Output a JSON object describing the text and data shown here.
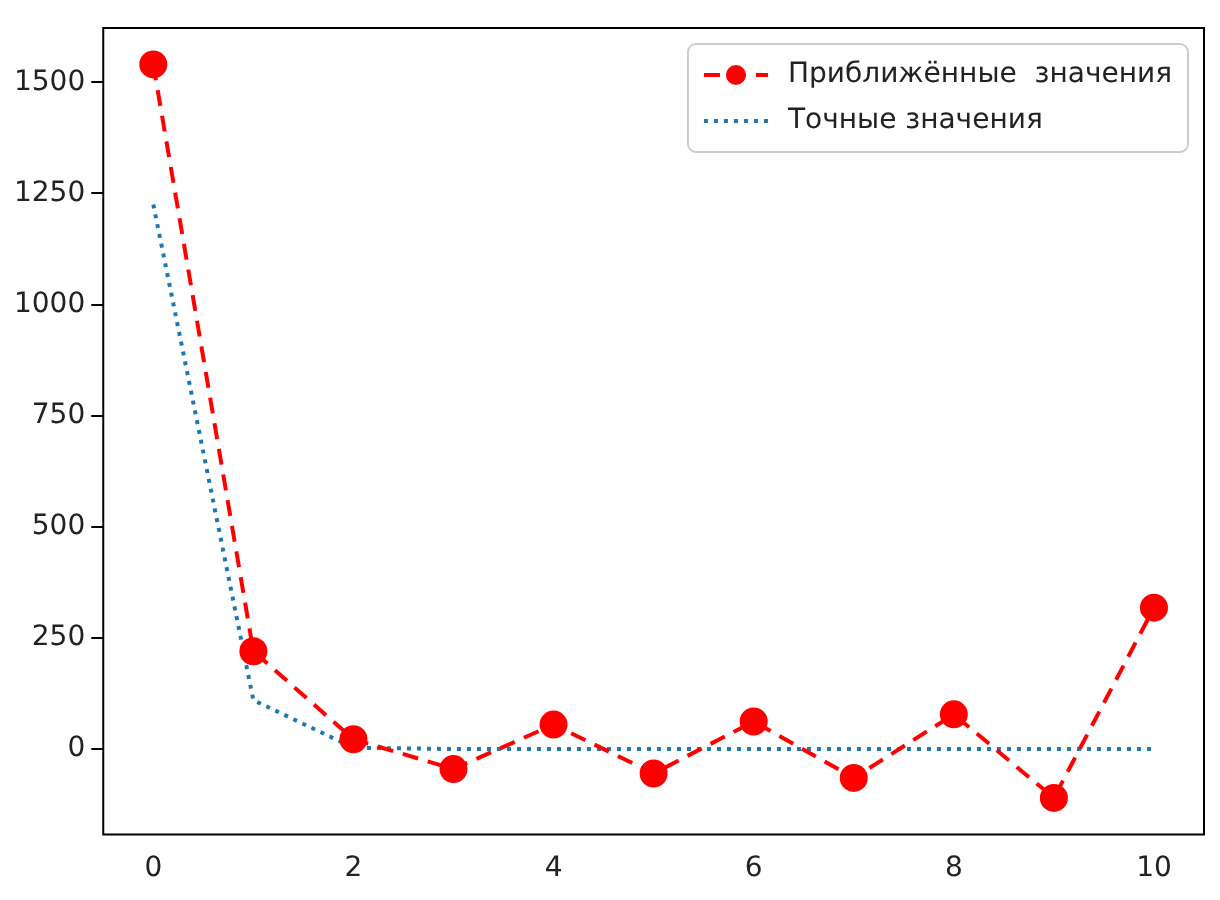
{
  "chart_data": {
    "type": "line",
    "x": [
      0,
      1,
      2,
      3,
      4,
      5,
      6,
      7,
      8,
      9,
      10
    ],
    "xlim": [
      -0.5,
      10.5
    ],
    "xticks": [
      0,
      2,
      4,
      6,
      8,
      10
    ],
    "ylim": [
      -192,
      1622
    ],
    "yticks": [
      0,
      250,
      500,
      750,
      1000,
      1250,
      1500
    ],
    "grid": false,
    "legend": "top right",
    "series": [
      {
        "name": "Приближённые  значения",
        "color": "#ff0000",
        "marker": "circle",
        "line_style": "dashed",
        "values": [
          1540,
          220,
          22,
          -45,
          55,
          -55,
          62,
          -65,
          78,
          -110,
          318
        ]
      },
      {
        "name": "Точные значения",
        "color": "#1f77b4",
        "marker": "none",
        "line_style": "dotted",
        "values": [
          1225,
          110,
          3,
          0,
          0,
          0,
          0,
          0,
          0,
          0,
          0
        ]
      }
    ]
  }
}
